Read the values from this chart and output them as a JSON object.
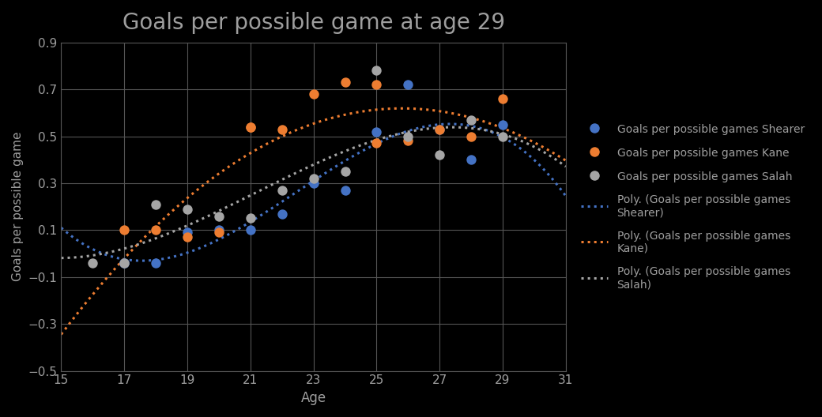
{
  "title": "Goals per possible game at age 29",
  "xlabel": "Age",
  "ylabel": "Goals per possible game",
  "xlim": [
    15,
    31
  ],
  "ylim": [
    -0.5,
    0.9
  ],
  "xticks": [
    15,
    17,
    19,
    21,
    23,
    25,
    27,
    29,
    31
  ],
  "yticks": [
    -0.5,
    -0.3,
    -0.1,
    0.1,
    0.3,
    0.5,
    0.7,
    0.9
  ],
  "fig_bg": "#000000",
  "plot_bg": "#000000",
  "shearer_color": "#4472C4",
  "kane_color": "#ED7D31",
  "salah_color": "#A5A5A5",
  "shearer_ages": [
    17,
    17,
    18,
    19,
    20,
    21,
    22,
    23,
    24,
    25,
    26,
    27,
    28,
    29
  ],
  "shearer_goals": [
    -0.04,
    -0.04,
    -0.04,
    0.09,
    0.1,
    0.1,
    0.17,
    0.3,
    0.27,
    0.52,
    0.72,
    0.53,
    0.4,
    0.55
  ],
  "kane_ages": [
    17,
    18,
    19,
    20,
    21,
    21,
    22,
    23,
    24,
    25,
    25,
    26,
    27,
    28,
    29
  ],
  "kane_goals": [
    0.1,
    0.1,
    0.07,
    0.09,
    0.54,
    0.54,
    0.53,
    0.68,
    0.73,
    0.47,
    0.72,
    0.48,
    0.53,
    0.5,
    0.66
  ],
  "salah_ages": [
    16,
    17,
    18,
    19,
    20,
    21,
    22,
    23,
    24,
    25,
    26,
    27,
    28,
    29
  ],
  "salah_goals": [
    -0.04,
    -0.04,
    0.21,
    0.19,
    0.16,
    0.15,
    0.27,
    0.32,
    0.35,
    0.78,
    0.5,
    0.42,
    0.57,
    0.5
  ],
  "title_color": "#9e9e9e",
  "axis_label_color": "#9e9e9e",
  "tick_color": "#9e9e9e",
  "grid_color": "#555555",
  "spine_color": "#555555"
}
